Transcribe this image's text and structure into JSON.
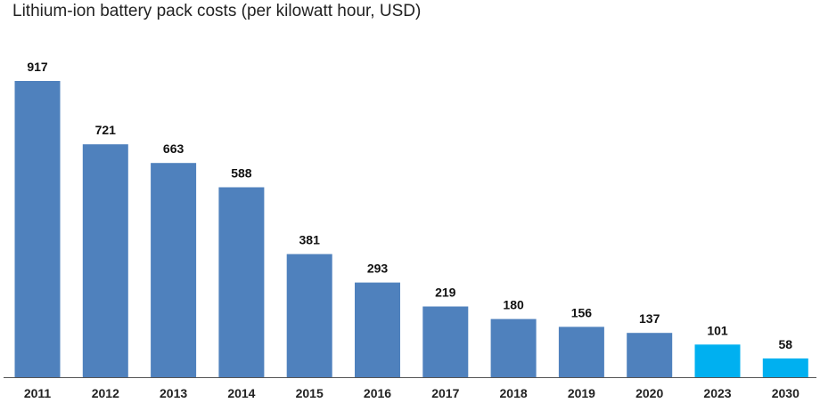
{
  "chart_data": {
    "type": "bar",
    "title": "Lithium-ion battery pack costs (per kilowatt hour, USD)",
    "xlabel": "",
    "ylabel": "",
    "categories": [
      "2011",
      "2012",
      "2013",
      "2014",
      "2015",
      "2016",
      "2017",
      "2018",
      "2019",
      "2020",
      "2023",
      "2030"
    ],
    "values": [
      917,
      721,
      663,
      588,
      381,
      293,
      219,
      180,
      156,
      137,
      101,
      58
    ],
    "ylim": [
      0,
      917
    ],
    "grid": false,
    "legend": "none",
    "data_labels": true,
    "colors": {
      "historical": "#4f81bd",
      "projected": "#00b0f0",
      "axis": "#555555"
    },
    "projected_categories": [
      "2023",
      "2030"
    ]
  }
}
